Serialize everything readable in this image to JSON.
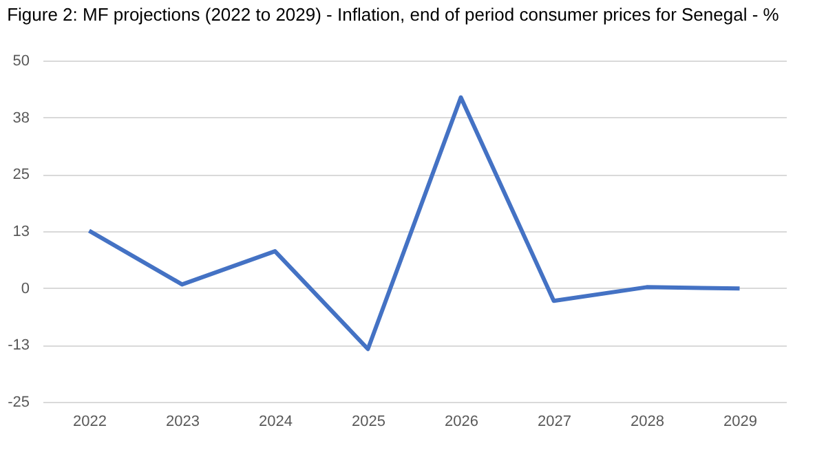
{
  "chart_data": {
    "type": "line",
    "title": "Figure 2: MF projections (2022 to 2029) - Inflation, end of period consumer prices for Senegal - %",
    "categories": [
      "2022",
      "2023",
      "2024",
      "2025",
      "2026",
      "2027",
      "2028",
      "2029"
    ],
    "series": [
      {
        "color": "#4472c4",
        "values": [
          12.6,
          0.8,
          8.1,
          -13.4,
          41.9,
          -2.8,
          0.2,
          -0.1
        ]
      }
    ],
    "ylim": [
      -25,
      50
    ],
    "yticks": [
      -25,
      {
        "value": -12.5,
        "label": "-13"
      },
      0,
      {
        "value": 12.5,
        "label": "13"
      },
      25,
      {
        "value": 37.5,
        "label": "38"
      },
      50
    ],
    "grid": "y",
    "marker": "none",
    "line_style": "solid"
  }
}
